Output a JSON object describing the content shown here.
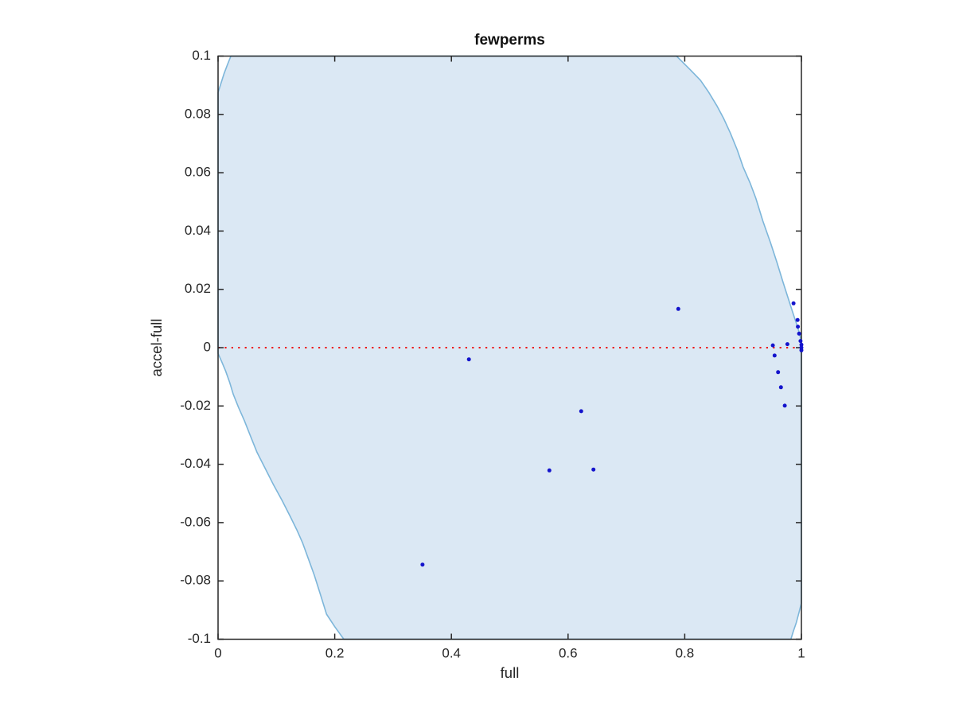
{
  "chart_data": {
    "type": "scatter",
    "title": "fewperms",
    "xlabel": "full",
    "ylabel": "accel-full",
    "xlim": [
      0,
      1
    ],
    "ylim": [
      -0.1,
      0.1
    ],
    "grid": false,
    "legend": null,
    "axis_color": "#262626",
    "x_ticks": [
      {
        "v": 0,
        "label": "0"
      },
      {
        "v": 0.2,
        "label": "0.2"
      },
      {
        "v": 0.4,
        "label": "0.4"
      },
      {
        "v": 0.6,
        "label": "0.6"
      },
      {
        "v": 0.8,
        "label": "0.8"
      },
      {
        "v": 1,
        "label": "1"
      }
    ],
    "y_ticks": [
      {
        "v": 0.1,
        "label": "0.1"
      },
      {
        "v": 0.08,
        "label": "0.08"
      },
      {
        "v": 0.06,
        "label": "0.06"
      },
      {
        "v": 0.04,
        "label": "0.04"
      },
      {
        "v": 0.02,
        "label": "0.02"
      },
      {
        "v": 0,
        "label": "0"
      },
      {
        "v": -0.02,
        "label": "-0.02"
      },
      {
        "v": -0.04,
        "label": "-0.04"
      },
      {
        "v": -0.06,
        "label": "-0.06"
      },
      {
        "v": -0.08,
        "label": "-0.08"
      },
      {
        "v": -0.1,
        "label": "-0.1"
      }
    ],
    "zero_line": {
      "y": 0,
      "style": "dotted",
      "color": "#ee1111",
      "width": 2,
      "dash": "2.2 6.2"
    },
    "marker": {
      "shape": "dot",
      "color": "#1414cc",
      "radius": 2.5
    },
    "points": [
      [
        0.789,
        0.0133
      ],
      [
        0.43,
        -0.004
      ],
      [
        0.6225,
        -0.0218
      ],
      [
        0.568,
        -0.0421
      ],
      [
        0.6435,
        -0.0418
      ],
      [
        0.3505,
        -0.0744
      ],
      [
        0.9865,
        0.0152
      ],
      [
        0.9935,
        0.0095
      ],
      [
        0.994,
        0.0072
      ],
      [
        0.996,
        0.0048
      ],
      [
        0.9985,
        0.0023
      ],
      [
        1.0,
        0.001
      ],
      [
        1.0,
        0.0
      ],
      [
        1.0,
        -0.0009
      ],
      [
        0.951,
        0.0008
      ],
      [
        0.976,
        0.0012
      ],
      [
        0.954,
        -0.0027
      ],
      [
        0.96,
        -0.0084
      ],
      [
        0.965,
        -0.0136
      ],
      [
        0.9715,
        -0.0199
      ]
    ],
    "region": {
      "note": "light blue shaded significance region clipped to axes limits",
      "fill": "#dbe8f4",
      "stroke": "#7db6da",
      "stroke_width": 1.6,
      "boundary": [
        [
          0,
          0.0875
        ],
        [
          0.005,
          0.0907
        ],
        [
          0.01,
          0.0938
        ],
        [
          0.016,
          0.097
        ],
        [
          0.022,
          0.1
        ],
        [
          0.786,
          0.1
        ],
        [
          0.797,
          0.0978
        ],
        [
          0.81,
          0.0952
        ],
        [
          0.827,
          0.0917
        ],
        [
          0.841,
          0.0876
        ],
        [
          0.855,
          0.083
        ],
        [
          0.867,
          0.0785
        ],
        [
          0.878,
          0.0737
        ],
        [
          0.89,
          0.0678
        ],
        [
          0.9,
          0.062
        ],
        [
          0.912,
          0.0565
        ],
        [
          0.922,
          0.0512
        ],
        [
          0.934,
          0.0434
        ],
        [
          0.947,
          0.036
        ],
        [
          0.958,
          0.0293
        ],
        [
          0.968,
          0.0228
        ],
        [
          0.977,
          0.0172
        ],
        [
          0.986,
          0.0116
        ],
        [
          0.992,
          0.008
        ],
        [
          0.997,
          0.0048
        ],
        [
          0.9995,
          0.0022
        ],
        [
          1,
          0.0002
        ],
        [
          1,
          -0.0876
        ],
        [
          0.996,
          -0.0907
        ],
        [
          0.991,
          -0.0945
        ],
        [
          0.986,
          -0.0974
        ],
        [
          0.982,
          -0.1
        ],
        [
          0.2155,
          -0.1
        ],
        [
          0.2,
          -0.0957
        ],
        [
          0.186,
          -0.0914
        ],
        [
          0.176,
          -0.085
        ],
        [
          0.165,
          -0.078
        ],
        [
          0.155,
          -0.0725
        ],
        [
          0.145,
          -0.067
        ],
        [
          0.135,
          -0.0625
        ],
        [
          0.124,
          -0.058
        ],
        [
          0.11,
          -0.0525
        ],
        [
          0.095,
          -0.047
        ],
        [
          0.081,
          -0.0415
        ],
        [
          0.067,
          -0.036
        ],
        [
          0.056,
          -0.0305
        ],
        [
          0.045,
          -0.025
        ],
        [
          0.035,
          -0.0205
        ],
        [
          0.026,
          -0.016
        ],
        [
          0.02,
          -0.012
        ],
        [
          0.013,
          -0.008
        ],
        [
          0.006,
          -0.0047
        ],
        [
          0,
          -0.002
        ]
      ]
    }
  }
}
